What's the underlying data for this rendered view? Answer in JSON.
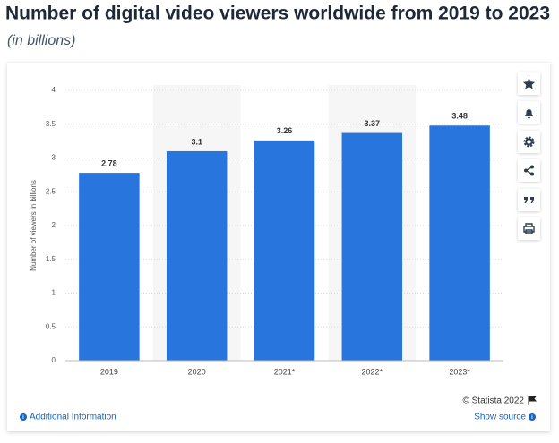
{
  "chart_data": {
    "type": "bar",
    "title": "Number of digital video viewers worldwide from 2019 to 2023",
    "subtitle": "(in billions)",
    "y_label": "Number of viewers in billions",
    "categories": [
      "2019",
      "2020",
      "2021*",
      "2022*",
      "2023*"
    ],
    "values": [
      2.78,
      3.1,
      3.26,
      3.37,
      3.48
    ],
    "color": "#2876dd",
    "ylim": [
      0,
      4
    ],
    "yticks": [
      0,
      0.5,
      1,
      1.5,
      2,
      2.5,
      3,
      3.5,
      4
    ],
    "grid": true
  },
  "footer": {
    "copyright": "© Statista 2022",
    "additional_information": "Additional Information",
    "show_source": "Show source"
  }
}
